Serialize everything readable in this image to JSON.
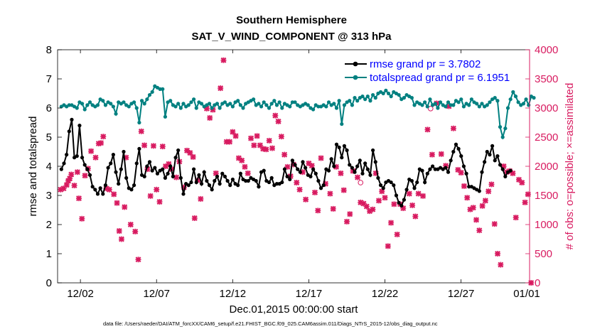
{
  "chart_data": {
    "type": "line",
    "title_line1": "Southern Hemisphere",
    "title_line2": "SAT_V_WIND_COMPONENT @ 313 hPa",
    "xlabel": "Dec.01,2015 00:00:00 start",
    "ylabel_left": "rmse and totalspread",
    "ylabel_right": "# of obs: o=possible; ×=assimilated",
    "footnote": "data file: /Users/raeder/DAI/ATM_forcXX/CAM6_setup/f.e21.FHIST_BGC.f09_025.CAM6assim.011/Diags_NTrS_2015-12/obs_diag_output.nc",
    "xlim": [
      0.5,
      31.5
    ],
    "ylim_left": [
      0,
      8
    ],
    "ylim_right": [
      0,
      4000
    ],
    "x_ticks": [
      2,
      7,
      12,
      17,
      22,
      27,
      32
    ],
    "x_tick_labels": [
      "12/02",
      "12/07",
      "12/12",
      "12/17",
      "12/22",
      "12/27",
      "01/01"
    ],
    "y_left_ticks": [
      "0",
      "1",
      "2",
      "3",
      "4",
      "5",
      "6",
      "7",
      "8"
    ],
    "y_right_ticks": [
      "0",
      "500",
      "1000",
      "1500",
      "2000",
      "2500",
      "3000",
      "3500",
      "4000"
    ],
    "legend_position": "top-right",
    "series": [
      {
        "name": "rmse grand pr = 3.7802",
        "color": "#000000",
        "marker": "circle",
        "axis": "left",
        "values": [
          3.9,
          4.1,
          4.4,
          5.2,
          5.6,
          4.3,
          4.35,
          5.4,
          4.3,
          4.05,
          3.9,
          3.7,
          3.3,
          3.2,
          3.05,
          3.25,
          3.05,
          3.35,
          3.95,
          4.1,
          4.4,
          3.8,
          3.4,
          3.9,
          4.5,
          3.6,
          3.25,
          3.2,
          3.35,
          4.1,
          4.6,
          3.7,
          3.65,
          4.0,
          4.15,
          3.85,
          3.95,
          3.75,
          3.85,
          3.9,
          3.6,
          3.75,
          4.0,
          3.65,
          4.3,
          4.55,
          3.6,
          3.05,
          3.4,
          3.35,
          3.45,
          3.9,
          3.45,
          3.7,
          3.4,
          3.8,
          3.5,
          3.35,
          3.2,
          3.5,
          3.65,
          3.4,
          3.75,
          3.65,
          3.5,
          3.35,
          3.55,
          3.4,
          3.35,
          3.75,
          3.55,
          3.5,
          3.5,
          3.6,
          3.55,
          3.5,
          3.3,
          3.8,
          3.85,
          3.5,
          3.45,
          3.6,
          3.35,
          3.4,
          3.4,
          3.45,
          3.9,
          3.65,
          3.55,
          4.2,
          4.05,
          3.9,
          3.8,
          4.15,
          3.95,
          3.7,
          3.65,
          3.9,
          3.75,
          3.5,
          3.25,
          3.35,
          3.9,
          3.85,
          4.25,
          4.0,
          4.75,
          4.65,
          4.3,
          4.7,
          4.55,
          4.05,
          3.95,
          3.8,
          4.0,
          4.2,
          3.75,
          4.1,
          3.9,
          3.7,
          4.55,
          4.15,
          3.6,
          3.35,
          3.25,
          3.45,
          3.5,
          3.45,
          3.35,
          3.0,
          2.75,
          2.65,
          2.85,
          3.2,
          3.55,
          3.5,
          3.25,
          3.45,
          3.9,
          3.85,
          3.45,
          3.75,
          3.9,
          4.0,
          3.9,
          3.9,
          3.95,
          3.9,
          3.95,
          3.8,
          4.2,
          4.5,
          4.75,
          4.6,
          4.35,
          4.0,
          3.75,
          3.3,
          3.3,
          3.25,
          3.2,
          3.15,
          3.8,
          4.15,
          4.5,
          4.4,
          4.7,
          4.2,
          4.35,
          4.05,
          3.9,
          3.65,
          3.8,
          3.85
        ]
      },
      {
        "name": "totalspread grand pr = 6.1951",
        "color": "#008080",
        "marker": "circle",
        "axis": "left",
        "values": [
          6.05,
          6.1,
          6.05,
          6.1,
          6.1,
          6.05,
          6.0,
          6.2,
          6.15,
          5.95,
          6.1,
          6.2,
          6.1,
          6.05,
          6.1,
          6.3,
          6.25,
          6.1,
          6.2,
          6.15,
          6.05,
          5.8,
          6.2,
          6.15,
          6.2,
          6.1,
          6.05,
          6.15,
          6.2,
          6.0,
          5.5,
          6.25,
          6.15,
          6.3,
          6.45,
          6.55,
          6.75,
          6.7,
          6.65,
          6.65,
          5.7,
          6.2,
          6.25,
          6.1,
          6.05,
          6.15,
          6.0,
          6.15,
          6.05,
          6.1,
          6.2,
          6.3,
          6.0,
          6.2,
          6.15,
          6.05,
          6.1,
          6.15,
          6.0,
          6.1,
          6.15,
          6.0,
          6.15,
          6.2,
          6.1,
          6.15,
          6.05,
          6.2,
          6.25,
          6.1,
          6.0,
          6.15,
          6.2,
          6.25,
          6.3,
          6.1,
          6.15,
          6.05,
          6.2,
          6.1,
          6.0,
          6.15,
          6.25,
          6.1,
          6.2,
          6.0,
          6.15,
          6.1,
          6.05,
          6.2,
          6.2,
          6.1,
          6.05,
          6.1,
          6.15,
          6.1,
          6.0,
          5.95,
          6.1,
          6.05,
          6.05,
          6.1,
          6.05,
          6.2,
          6.1,
          6.15,
          6.0,
          6.25,
          5.45,
          6.1,
          6.2,
          6.25,
          6.1,
          6.35,
          6.25,
          6.35,
          6.4,
          6.3,
          6.4,
          6.25,
          6.45,
          6.35,
          6.5,
          6.55,
          6.5,
          6.6,
          6.5,
          6.4,
          6.55,
          6.5,
          6.45,
          6.3,
          6.35,
          6.45,
          6.4,
          6.35,
          6.1,
          6.2,
          6.15,
          6.1,
          6.2,
          6.05,
          6.3,
          6.1,
          6.15,
          6.0,
          6.2,
          6.1,
          6.05,
          6.2,
          6.1,
          6.1,
          6.25,
          6.2,
          6.3,
          6.05,
          6.15,
          6.1,
          6.3,
          6.2,
          6.15,
          6.05,
          6.15,
          6.05,
          6.1,
          6.2,
          6.3,
          6.35,
          6.25,
          5.35,
          5.0,
          5.3,
          6.0,
          6.3,
          6.55,
          6.4,
          6.2,
          6.1,
          6.15,
          6.3,
          6.1,
          6.4,
          6.35
        ]
      },
      {
        "name": "# of obs assimilated",
        "color": "#d81b60",
        "marker": "x",
        "axis": "right",
        "points": [
          [
            0.7,
            1600
          ],
          [
            0.9,
            1620
          ],
          [
            1.1,
            1680
          ],
          [
            1.2,
            1750
          ],
          [
            1.3,
            1790
          ],
          [
            1.4,
            1860
          ],
          [
            1.6,
            1670
          ],
          [
            1.8,
            1900
          ],
          [
            1.9,
            1450
          ],
          [
            2.1,
            1100
          ],
          [
            2.3,
            1840
          ],
          [
            2.5,
            1960
          ],
          [
            2.7,
            2260
          ],
          [
            3.0,
            2150
          ],
          [
            3.2,
            2390
          ],
          [
            3.35,
            2400
          ],
          [
            3.5,
            2510
          ],
          [
            3.7,
            1620
          ],
          [
            3.9,
            1600
          ],
          [
            4.2,
            1520
          ],
          [
            4.4,
            1370
          ],
          [
            4.55,
            890
          ],
          [
            4.7,
            750
          ],
          [
            4.9,
            1300
          ],
          [
            5.0,
            2150
          ],
          [
            5.3,
            1000
          ],
          [
            5.6,
            880
          ],
          [
            5.8,
            400
          ],
          [
            6.0,
            2600
          ],
          [
            6.2,
            2360
          ],
          [
            6.4,
            1950
          ],
          [
            6.6,
            1490
          ],
          [
            6.8,
            2350
          ],
          [
            7.0,
            1600
          ],
          [
            7.2,
            1390
          ],
          [
            7.4,
            2340
          ],
          [
            7.6,
            2000
          ],
          [
            7.8,
            2040
          ],
          [
            8.0,
            1950
          ],
          [
            8.3,
            1810
          ],
          [
            8.5,
            2080
          ],
          [
            8.8,
            1640
          ],
          [
            9.0,
            2270
          ],
          [
            9.2,
            2230
          ],
          [
            9.4,
            2160
          ],
          [
            9.5,
            1110
          ],
          [
            9.7,
            1760
          ],
          [
            9.9,
            1440
          ],
          [
            10.3,
            2990
          ],
          [
            10.5,
            2830
          ],
          [
            10.7,
            2970
          ],
          [
            10.9,
            1880
          ],
          [
            11.2,
            3340
          ],
          [
            11.4,
            3820
          ],
          [
            11.6,
            2420
          ],
          [
            11.8,
            2420
          ],
          [
            12.0,
            2590
          ],
          [
            12.2,
            2520
          ],
          [
            12.4,
            2140
          ],
          [
            12.6,
            2100
          ],
          [
            12.8,
            1990
          ],
          [
            13.0,
            1880
          ],
          [
            13.2,
            2480
          ],
          [
            13.4,
            2360
          ],
          [
            13.6,
            2520
          ],
          [
            13.8,
            2360
          ],
          [
            14.0,
            2300
          ],
          [
            14.2,
            2290
          ],
          [
            14.4,
            2440
          ],
          [
            14.6,
            2310
          ],
          [
            14.8,
            2870
          ],
          [
            15.0,
            2770
          ],
          [
            15.2,
            2510
          ],
          [
            15.4,
            2200
          ],
          [
            15.6,
            1990
          ],
          [
            15.8,
            1830
          ],
          [
            16.0,
            2030
          ],
          [
            16.2,
            1720
          ],
          [
            16.4,
            1600
          ],
          [
            16.6,
            1900
          ],
          [
            16.8,
            1430
          ],
          [
            17.0,
            2050
          ],
          [
            17.2,
            2010
          ],
          [
            17.4,
            1550
          ],
          [
            17.6,
            1240
          ],
          [
            17.8,
            2140
          ],
          [
            18.1,
            1700
          ],
          [
            18.4,
            1530
          ],
          [
            18.6,
            1270
          ],
          [
            18.8,
            1990
          ],
          [
            19.1,
            1880
          ],
          [
            19.3,
            1590
          ],
          [
            19.5,
            1050
          ],
          [
            19.7,
            1180
          ],
          [
            19.9,
            1920
          ],
          [
            20.2,
            1810
          ],
          [
            20.4,
            1380
          ],
          [
            20.6,
            1360
          ],
          [
            20.8,
            1310
          ],
          [
            21.0,
            1230
          ],
          [
            21.2,
            1260
          ],
          [
            21.4,
            1880
          ],
          [
            21.6,
            1410
          ],
          [
            21.8,
            1570
          ],
          [
            22.0,
            1460
          ],
          [
            22.2,
            630
          ],
          [
            22.4,
            1030
          ],
          [
            22.6,
            1350
          ],
          [
            22.8,
            830
          ],
          [
            23.0,
            1350
          ],
          [
            23.2,
            1280
          ],
          [
            23.6,
            1530
          ],
          [
            23.8,
            1330
          ],
          [
            24.0,
            1140
          ],
          [
            24.2,
            1530
          ],
          [
            24.5,
            1490
          ],
          [
            24.8,
            2630
          ],
          [
            25.1,
            2200
          ],
          [
            25.4,
            3080
          ],
          [
            25.7,
            2210
          ],
          [
            26.0,
            2010
          ],
          [
            26.2,
            3030
          ],
          [
            26.5,
            2650
          ],
          [
            26.8,
            1940
          ],
          [
            27.0,
            1890
          ],
          [
            27.2,
            1660
          ],
          [
            27.4,
            1460
          ],
          [
            27.6,
            1260
          ],
          [
            27.8,
            1290
          ],
          [
            28.0,
            1080
          ],
          [
            28.2,
            900
          ],
          [
            28.4,
            1320
          ],
          [
            28.6,
            1410
          ],
          [
            28.8,
            1570
          ],
          [
            29.0,
            1690
          ],
          [
            29.2,
            1010
          ],
          [
            29.4,
            500
          ],
          [
            29.6,
            310
          ],
          [
            29.8,
            2000
          ],
          [
            30.0,
            1900
          ],
          [
            30.2,
            1920
          ],
          [
            30.4,
            1880
          ],
          [
            30.6,
            1120
          ],
          [
            30.8,
            1770
          ],
          [
            31.0,
            1720
          ],
          [
            31.2,
            1380
          ],
          [
            31.4,
            1520
          ],
          [
            31.6,
            0
          ]
        ]
      },
      {
        "name": "# of obs possible",
        "color": "#d81b60",
        "marker": "o",
        "axis": "right",
        "points": [
          [
            20.4,
            1720
          ],
          [
            25.0,
            2990
          ]
        ]
      }
    ]
  }
}
